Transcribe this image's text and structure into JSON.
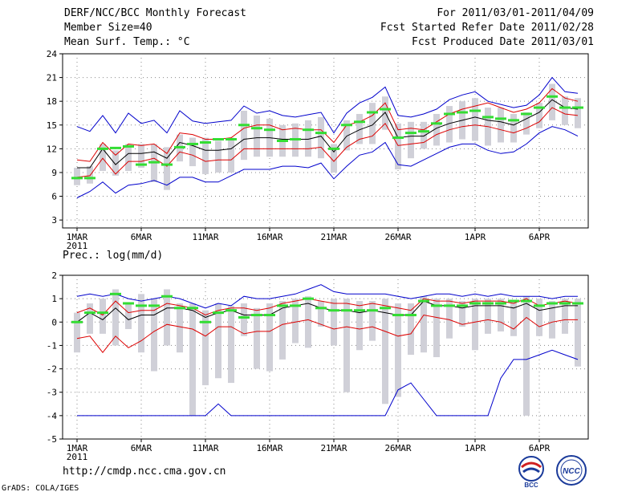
{
  "header": {
    "title": "DERF/NCC/BCC Monthly Forecast",
    "member": "Member Size=40",
    "variable": "Mean Surf. Temp.: °C",
    "period": "For 2011/03/01-2011/04/09",
    "started": "Fcst Started Refer Date 2011/02/28",
    "produced": "Fcst Produced Date 2011/03/01"
  },
  "footer": {
    "url": "http://cmdp.ncc.cma.gov.cn",
    "grads": "GrADS: COLA/IGES"
  },
  "logos": {
    "bcc": "BCC",
    "ncc": "NCC"
  },
  "colors": {
    "max": "#0000cc",
    "std": "#dd0000",
    "mean": "#000000",
    "box": "#d0d0d8",
    "obs": "#33dd33"
  },
  "chart_data": [
    {
      "type": "line",
      "title": "Mean Surf. Temp.: °C",
      "xlabel": "",
      "ylabel": "",
      "ylim": [
        2,
        24
      ],
      "yticks": [
        3,
        6,
        9,
        12,
        15,
        18,
        21,
        24
      ],
      "xticks": [
        {
          "day": 1,
          "label": "1MAR",
          "sub": "2011"
        },
        {
          "day": 6,
          "label": "6MAR"
        },
        {
          "day": 11,
          "label": "11MAR"
        },
        {
          "day": 16,
          "label": "16MAR"
        },
        {
          "day": 21,
          "label": "21MAR"
        },
        {
          "day": 26,
          "label": "26MAR"
        },
        {
          "day": 32,
          "label": "1APR"
        },
        {
          "day": 37,
          "label": "6APR"
        }
      ],
      "grid": true,
      "x": [
        1,
        2,
        3,
        4,
        5,
        6,
        7,
        8,
        9,
        10,
        11,
        12,
        13,
        14,
        15,
        16,
        17,
        18,
        19,
        20,
        21,
        22,
        23,
        24,
        25,
        26,
        27,
        28,
        29,
        30,
        31,
        32,
        33,
        34,
        35,
        36,
        37,
        38,
        39,
        40
      ],
      "series": [
        {
          "name": "max",
          "values": [
            14.8,
            14.2,
            16.2,
            14.0,
            16.5,
            15.2,
            15.6,
            14.0,
            16.8,
            15.5,
            15.2,
            15.4,
            15.6,
            17.4,
            16.5,
            16.8,
            16.2,
            16.0,
            16.3,
            16.6,
            14.0,
            16.5,
            17.8,
            18.5,
            19.8,
            16.2,
            16.0,
            16.4,
            17.0,
            18.2,
            18.8,
            19.2,
            18.0,
            17.6,
            17.2,
            17.5,
            18.8,
            21.0,
            19.2,
            19.0
          ]
        },
        {
          "name": "upper",
          "values": [
            10.6,
            10.4,
            12.8,
            11.2,
            12.6,
            12.4,
            12.6,
            11.4,
            14.0,
            13.8,
            13.2,
            13.2,
            13.4,
            14.6,
            15.0,
            15.0,
            14.4,
            14.6,
            14.4,
            14.4,
            12.8,
            15.0,
            15.4,
            16.2,
            17.8,
            14.4,
            14.6,
            14.4,
            15.4,
            16.4,
            17.0,
            17.4,
            17.8,
            17.2,
            16.6,
            17.0,
            17.8,
            19.6,
            18.4,
            18.0
          ]
        },
        {
          "name": "mean",
          "values": [
            9.6,
            9.6,
            12.0,
            10.0,
            11.4,
            11.4,
            11.6,
            10.8,
            12.8,
            12.4,
            11.8,
            11.8,
            12.0,
            13.2,
            13.4,
            13.4,
            13.2,
            13.2,
            13.2,
            13.6,
            11.6,
            13.6,
            14.4,
            15.0,
            16.6,
            13.4,
            13.6,
            13.6,
            14.6,
            15.2,
            15.6,
            16.0,
            15.6,
            15.4,
            15.0,
            15.8,
            16.6,
            18.2,
            17.2,
            17.0
          ]
        },
        {
          "name": "lower",
          "values": [
            8.4,
            8.6,
            10.8,
            8.8,
            10.4,
            10.4,
            10.8,
            9.8,
            11.6,
            11.2,
            10.4,
            10.6,
            10.6,
            12.0,
            12.0,
            12.0,
            12.0,
            12.0,
            12.0,
            12.2,
            10.4,
            12.2,
            13.2,
            13.6,
            15.2,
            12.4,
            12.6,
            12.8,
            13.8,
            14.4,
            14.8,
            15.0,
            14.8,
            14.4,
            14.0,
            14.6,
            15.4,
            17.2,
            16.4,
            16.2
          ]
        },
        {
          "name": "min",
          "values": [
            5.8,
            6.6,
            7.8,
            6.4,
            7.4,
            7.6,
            8.0,
            7.4,
            8.4,
            8.4,
            7.8,
            7.8,
            8.6,
            9.4,
            9.4,
            9.4,
            9.8,
            9.8,
            9.6,
            10.2,
            8.2,
            9.8,
            11.2,
            11.6,
            12.8,
            10.0,
            9.8,
            10.6,
            11.4,
            12.2,
            12.6,
            12.6,
            11.8,
            11.4,
            11.6,
            12.6,
            14.0,
            14.8,
            14.4,
            13.6
          ]
        },
        {
          "name": "box_low",
          "values": [
            7.4,
            7.6,
            9.2,
            8.6,
            9.2,
            9.6,
            7.8,
            6.8,
            10.4,
            9.8,
            8.8,
            9.0,
            9.0,
            10.6,
            11.0,
            11.0,
            11.0,
            11.0,
            11.0,
            10.8,
            9.0,
            11.8,
            12.6,
            12.6,
            14.4,
            9.4,
            10.8,
            12.0,
            12.4,
            12.8,
            13.2,
            13.0,
            12.4,
            12.8,
            12.8,
            13.8,
            14.6,
            15.6,
            15.0,
            14.6
          ]
        },
        {
          "name": "box_high",
          "values": [
            9.6,
            9.8,
            12.6,
            11.8,
            12.6,
            12.6,
            12.6,
            12.2,
            13.8,
            13.4,
            13.4,
            13.0,
            13.4,
            16.8,
            16.2,
            15.8,
            15.0,
            15.2,
            15.6,
            16.0,
            12.6,
            15.6,
            16.4,
            17.8,
            18.6,
            15.2,
            15.4,
            15.4,
            16.4,
            17.4,
            18.0,
            18.4,
            17.2,
            17.2,
            16.4,
            16.6,
            17.8,
            20.2,
            18.6,
            18.4
          ]
        },
        {
          "name": "obs",
          "values": [
            8.3,
            8.3,
            12.0,
            12.1,
            12.3,
            10.0,
            10.3,
            10.0,
            12.2,
            12.6,
            12.8,
            13.2,
            13.2,
            15.0,
            14.6,
            14.4,
            13.0,
            13.2,
            14.4,
            14.0,
            12.0,
            15.0,
            15.4,
            16.6,
            17.0,
            13.4,
            14.0,
            14.2,
            15.2,
            16.4,
            16.6,
            16.8,
            16.0,
            15.8,
            15.6,
            16.4,
            17.2,
            18.6,
            17.2,
            17.2
          ]
        }
      ]
    },
    {
      "type": "line",
      "title": "Prec.: log(mm/d)",
      "xlabel": "",
      "ylabel": "",
      "ylim": [
        -5,
        2
      ],
      "yticks": [
        -5,
        -4,
        -3,
        -2,
        -1,
        0,
        1,
        2
      ],
      "xticks": [
        {
          "day": 1,
          "label": "1MAR",
          "sub": "2011"
        },
        {
          "day": 6,
          "label": "6MAR"
        },
        {
          "day": 11,
          "label": "11MAR"
        },
        {
          "day": 16,
          "label": "16MAR"
        },
        {
          "day": 21,
          "label": "21MAR"
        },
        {
          "day": 26,
          "label": "26MAR"
        },
        {
          "day": 32,
          "label": "1APR"
        },
        {
          "day": 37,
          "label": "6APR"
        }
      ],
      "grid": true,
      "x": [
        1,
        2,
        3,
        4,
        5,
        6,
        7,
        8,
        9,
        10,
        11,
        12,
        13,
        14,
        15,
        16,
        17,
        18,
        19,
        20,
        21,
        22,
        23,
        24,
        25,
        26,
        27,
        28,
        29,
        30,
        31,
        32,
        33,
        34,
        35,
        36,
        37,
        38,
        39,
        40
      ],
      "series": [
        {
          "name": "max",
          "values": [
            1.1,
            1.2,
            1.1,
            1.2,
            1.0,
            0.9,
            1.0,
            1.1,
            1.0,
            0.8,
            0.6,
            0.8,
            0.7,
            1.1,
            1.0,
            1.0,
            1.1,
            1.2,
            1.4,
            1.6,
            1.3,
            1.2,
            1.2,
            1.2,
            1.2,
            1.1,
            1.0,
            1.1,
            1.2,
            1.2,
            1.1,
            1.2,
            1.1,
            1.2,
            1.1,
            1.1,
            1.1,
            1.0,
            1.1,
            1.1
          ]
        },
        {
          "name": "upper",
          "values": [
            0.4,
            0.6,
            0.3,
            0.9,
            0.4,
            0.5,
            0.5,
            0.8,
            0.7,
            0.6,
            0.3,
            0.5,
            0.6,
            0.6,
            0.5,
            0.6,
            0.8,
            0.9,
            1.0,
            0.9,
            0.8,
            0.8,
            0.7,
            0.8,
            0.7,
            0.6,
            0.5,
            1.0,
            0.9,
            0.9,
            0.8,
            0.9,
            0.9,
            0.9,
            0.8,
            1.0,
            0.7,
            0.8,
            0.9,
            0.8
          ]
        },
        {
          "name": "mean",
          "values": [
            0.0,
            0.4,
            0.1,
            0.6,
            0.1,
            0.3,
            0.3,
            0.6,
            0.6,
            0.5,
            0.2,
            0.4,
            0.5,
            0.3,
            0.3,
            0.3,
            0.6,
            0.7,
            0.8,
            0.6,
            0.5,
            0.5,
            0.4,
            0.5,
            0.4,
            0.3,
            0.3,
            0.9,
            0.7,
            0.7,
            0.6,
            0.7,
            0.7,
            0.7,
            0.6,
            0.8,
            0.5,
            0.6,
            0.7,
            0.7
          ]
        },
        {
          "name": "lower",
          "values": [
            -0.7,
            -0.6,
            -1.3,
            -0.6,
            -1.1,
            -0.8,
            -0.4,
            -0.1,
            -0.2,
            -0.3,
            -0.6,
            -0.2,
            -0.2,
            -0.5,
            -0.4,
            -0.4,
            -0.1,
            0.0,
            0.1,
            -0.1,
            -0.3,
            -0.2,
            -0.3,
            -0.2,
            -0.4,
            -0.6,
            -0.5,
            0.3,
            0.2,
            0.1,
            -0.1,
            0.0,
            0.1,
            0.0,
            -0.3,
            0.2,
            -0.2,
            0.0,
            0.1,
            0.1
          ]
        },
        {
          "name": "min",
          "values": [
            -4.0,
            -4.0,
            -4.0,
            -4.0,
            -4.0,
            -4.0,
            -4.0,
            -4.0,
            -4.0,
            -4.0,
            -4.0,
            -3.5,
            -4.0,
            -4.0,
            -4.0,
            -4.0,
            -4.0,
            -4.0,
            -4.0,
            -4.0,
            -4.0,
            -4.0,
            -4.0,
            -4.0,
            -4.0,
            -2.9,
            -2.6,
            -3.3,
            -4.0,
            -4.0,
            -4.0,
            -4.0,
            -4.0,
            -2.4,
            -1.6,
            -1.6,
            -1.4,
            -1.2,
            -1.4,
            -1.6
          ]
        },
        {
          "name": "box_low",
          "values": [
            -1.3,
            -0.5,
            -0.5,
            -1.0,
            -0.3,
            -1.3,
            -2.1,
            -1.0,
            -1.3,
            -4.0,
            -2.7,
            -2.4,
            -2.6,
            -0.6,
            -2.0,
            -2.1,
            -1.6,
            -0.9,
            -1.1,
            -0.2,
            -1.0,
            -3.0,
            -1.2,
            -0.8,
            -3.5,
            -3.2,
            -1.4,
            -1.3,
            -1.5,
            -0.7,
            -0.2,
            -1.2,
            -0.5,
            -0.4,
            -0.6,
            -4.0,
            -0.6,
            -0.7,
            -0.5,
            -1.9
          ]
        },
        {
          "name": "box_high",
          "values": [
            0.4,
            0.8,
            1.0,
            1.4,
            0.8,
            1.2,
            1.0,
            1.4,
            0.8,
            0.8,
            0.5,
            0.8,
            0.7,
            0.8,
            0.6,
            0.8,
            0.9,
            1.0,
            1.1,
            0.9,
            1.0,
            1.0,
            0.9,
            0.9,
            1.0,
            0.8,
            0.8,
            1.1,
            1.0,
            1.0,
            0.9,
            1.0,
            1.0,
            1.0,
            0.9,
            1.1,
            1.0,
            0.9,
            1.0,
            1.0
          ]
        },
        {
          "name": "obs",
          "values": [
            0.0,
            0.4,
            0.4,
            1.2,
            0.8,
            0.7,
            0.7,
            1.1,
            0.6,
            0.6,
            0.0,
            0.4,
            0.5,
            0.2,
            0.3,
            0.3,
            0.7,
            0.7,
            1.0,
            0.6,
            0.5,
            0.5,
            0.5,
            0.5,
            0.6,
            0.3,
            0.3,
            0.9,
            0.7,
            0.7,
            0.7,
            0.8,
            0.8,
            0.8,
            0.9,
            0.9,
            0.7,
            0.8,
            0.8,
            0.8
          ]
        }
      ]
    }
  ]
}
